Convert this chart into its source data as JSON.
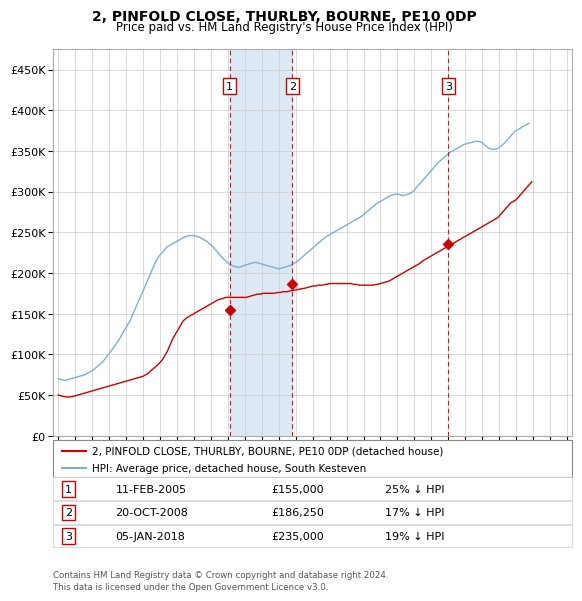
{
  "title": "2, PINFOLD CLOSE, THURLBY, BOURNE, PE10 0DP",
  "subtitle": "Price paid vs. HM Land Registry's House Price Index (HPI)",
  "legend_line1": "2, PINFOLD CLOSE, THURLBY, BOURNE, PE10 0DP (detached house)",
  "legend_line2": "HPI: Average price, detached house, South Kesteven",
  "footer1": "Contains HM Land Registry data © Crown copyright and database right 2024.",
  "footer2": "This data is licensed under the Open Government Licence v3.0.",
  "transactions": [
    {
      "num": 1,
      "date": "11-FEB-2005",
      "date_val": 2005.1,
      "price": 155000,
      "label": "25% ↓ HPI"
    },
    {
      "num": 2,
      "date": "20-OCT-2008",
      "date_val": 2008.8,
      "price": 186250,
      "label": "17% ↓ HPI"
    },
    {
      "num": 3,
      "date": "05-JAN-2018",
      "date_val": 2018.0,
      "price": 235000,
      "label": "19% ↓ HPI"
    }
  ],
  "red_color": "#cc0000",
  "blue_color": "#7bafd4",
  "blue_fill": "#dce9f5",
  "ylim": [
    0,
    475000
  ],
  "yticks": [
    0,
    50000,
    100000,
    150000,
    200000,
    250000,
    300000,
    350000,
    400000,
    450000
  ],
  "xlim_start": 1994.7,
  "xlim_end": 2025.3,
  "hpi_monthly": {
    "start_year": 1995,
    "start_month": 1,
    "values": [
      70000,
      69500,
      69000,
      68500,
      68000,
      68000,
      68500,
      69000,
      69500,
      70000,
      70500,
      71000,
      71500,
      72000,
      72500,
      73000,
      73500,
      74000,
      74500,
      75000,
      76000,
      77000,
      78000,
      79000,
      80000,
      81000,
      82500,
      84000,
      85500,
      87000,
      88500,
      90000,
      92000,
      94000,
      96500,
      99000,
      101000,
      103000,
      105500,
      108000,
      110500,
      113000,
      115500,
      118000,
      121000,
      124000,
      127000,
      130000,
      133000,
      136000,
      139000,
      142000,
      146000,
      150000,
      154000,
      158000,
      162000,
      166000,
      170000,
      174000,
      178000,
      182000,
      186000,
      190000,
      194000,
      198000,
      202000,
      206000,
      210000,
      214000,
      217000,
      220000,
      222000,
      224000,
      226000,
      228000,
      230000,
      232000,
      233000,
      234000,
      235000,
      236000,
      237000,
      238000,
      239000,
      240000,
      241000,
      242000,
      243000,
      244000,
      244500,
      245000,
      245500,
      246000,
      246000,
      246000,
      246000,
      245500,
      245000,
      244500,
      244000,
      243000,
      242000,
      241000,
      240000,
      239000,
      237500,
      236000,
      234500,
      233000,
      231000,
      229000,
      227000,
      225000,
      223000,
      221000,
      219000,
      217000,
      215500,
      214000,
      212500,
      211000,
      210000,
      209000,
      208500,
      208000,
      207500,
      207000,
      207000,
      207500,
      208000,
      209000,
      209500,
      210000,
      210500,
      211000,
      211500,
      212000,
      212500,
      213000,
      213000,
      212500,
      212000,
      211500,
      211000,
      210500,
      210000,
      209500,
      209000,
      208500,
      208000,
      207500,
      207000,
      206500,
      206000,
      205500,
      205000,
      205500,
      206000,
      206500,
      207000,
      207500,
      208000,
      208500,
      209000,
      210000,
      211000,
      212000,
      213000,
      214000,
      215500,
      217000,
      218500,
      220000,
      221500,
      223000,
      224500,
      226000,
      227500,
      229000,
      230500,
      232000,
      233500,
      235000,
      236500,
      238000,
      239500,
      241000,
      242500,
      244000,
      245000,
      246000,
      247000,
      248000,
      249000,
      250000,
      251000,
      252000,
      253000,
      254000,
      255000,
      256000,
      257000,
      258000,
      259000,
      260000,
      261000,
      262000,
      263000,
      264000,
      265000,
      266000,
      267000,
      268000,
      269000,
      270000,
      271500,
      273000,
      274500,
      276000,
      277500,
      279000,
      280500,
      282000,
      283500,
      285000,
      286000,
      287000,
      288000,
      289000,
      290000,
      291000,
      292000,
      293000,
      294000,
      295000,
      295500,
      296000,
      296500,
      297000,
      297000,
      296500,
      296000,
      295500,
      295000,
      295500,
      296000,
      296500,
      297000,
      298000,
      299000,
      300000,
      302000,
      304000,
      306000,
      308000,
      310000,
      312000,
      314000,
      316000,
      318000,
      320000,
      322000,
      324000,
      326000,
      328000,
      330000,
      332000,
      334000,
      336000,
      337500,
      339000,
      340500,
      342000,
      343500,
      345000,
      346500,
      348000,
      349000,
      350000,
      351000,
      352000,
      353000,
      354000,
      355000,
      356000,
      357000,
      358000,
      358500,
      359000,
      359500,
      360000,
      360000,
      360500,
      361000,
      361500,
      362000,
      362000,
      361500,
      361000,
      360000,
      358500,
      357000,
      355500,
      354000,
      353000,
      352500,
      352000,
      352000,
      352000,
      352500,
      353000,
      354000,
      355500,
      357000,
      358500,
      360000,
      362000,
      364000,
      366000,
      368000,
      370000,
      372000,
      374000,
      375000,
      376000,
      377000,
      378000,
      379000,
      380000,
      381000,
      382000,
      383000,
      384000
    ]
  },
  "price_monthly": {
    "start_year": 1995,
    "start_month": 1,
    "values": [
      50000,
      49500,
      49000,
      48500,
      48000,
      47800,
      47600,
      47500,
      47500,
      47800,
      48000,
      48500,
      49000,
      49500,
      50000,
      50500,
      51000,
      51500,
      52000,
      52500,
      53000,
      53500,
      54000,
      54500,
      55000,
      55500,
      56000,
      56500,
      57000,
      57500,
      58000,
      58500,
      59000,
      59500,
      60000,
      60500,
      61000,
      61500,
      62000,
      62500,
      63000,
      63500,
      64000,
      64500,
      65000,
      65500,
      66000,
      66500,
      67000,
      67500,
      68000,
      68500,
      69000,
      69500,
      70000,
      70500,
      71000,
      71500,
      72000,
      72500,
      73000,
      74000,
      75000,
      76000,
      77500,
      79000,
      80500,
      82000,
      83500,
      85000,
      86500,
      88000,
      90000,
      92000,
      94000,
      97000,
      100000,
      103000,
      107000,
      111000,
      115000,
      119000,
      122000,
      125000,
      128000,
      131000,
      134000,
      137000,
      140000,
      142000,
      143500,
      145000,
      146000,
      147000,
      148000,
      149000,
      150000,
      151000,
      152000,
      153000,
      154000,
      155000,
      156000,
      157000,
      158000,
      159000,
      160000,
      161000,
      162000,
      163000,
      164000,
      165000,
      166000,
      167000,
      167500,
      168000,
      168500,
      169000,
      169500,
      170000,
      170000,
      170000,
      170000,
      170000,
      170000,
      170000,
      170000,
      170000,
      170000,
      170000,
      170000,
      170000,
      170000,
      170000,
      170500,
      171000,
      171500,
      172000,
      172500,
      173000,
      173500,
      174000,
      174000,
      174000,
      174500,
      175000,
      175000,
      175000,
      175000,
      175000,
      175000,
      175000,
      175000,
      175000,
      175500,
      176000,
      176000,
      176000,
      176500,
      177000,
      177000,
      177000,
      177000,
      177500,
      178000,
      178000,
      178500,
      179000,
      179000,
      179500,
      180000,
      180000,
      180500,
      181000,
      181000,
      181500,
      182000,
      182500,
      183000,
      183500,
      184000,
      184000,
      184000,
      184500,
      185000,
      185000,
      185000,
      185000,
      185500,
      186000,
      186000,
      186500,
      187000,
      187000,
      187000,
      187000,
      187000,
      187000,
      187000,
      187000,
      187000,
      187000,
      187000,
      187000,
      187000,
      187000,
      187000,
      187000,
      186500,
      186000,
      186000,
      186000,
      185500,
      185000,
      185000,
      185000,
      185000,
      185000,
      185000,
      185000,
      185000,
      185000,
      185000,
      185000,
      185500,
      186000,
      186000,
      186500,
      187000,
      187500,
      188000,
      188500,
      189000,
      189500,
      190000,
      191000,
      192000,
      193000,
      194000,
      195000,
      196000,
      197000,
      198000,
      199000,
      200000,
      201000,
      202000,
      203000,
      204000,
      205000,
      206000,
      207000,
      208000,
      209000,
      210000,
      211000,
      212000,
      213500,
      215000,
      216000,
      217000,
      218000,
      219000,
      220000,
      221000,
      222000,
      223000,
      224000,
      225000,
      226000,
      227000,
      228000,
      229000,
      230000,
      231000,
      232000,
      233000,
      234000,
      235000,
      236000,
      237000,
      238000,
      239000,
      240000,
      241000,
      242000,
      243000,
      244000,
      245000,
      246000,
      247000,
      248000,
      249000,
      250000,
      251000,
      252000,
      253000,
      254000,
      255000,
      256000,
      257000,
      258000,
      259000,
      260000,
      261000,
      262000,
      263000,
      264000,
      265000,
      266000,
      267000,
      268000,
      270000,
      272000,
      274000,
      276000,
      278000,
      280000,
      282000,
      284000,
      286000,
      287000,
      288000,
      289000,
      290000,
      292000,
      294000,
      296000,
      298000,
      300000,
      302000,
      304000,
      306000,
      308000,
      310000,
      312000
    ]
  }
}
